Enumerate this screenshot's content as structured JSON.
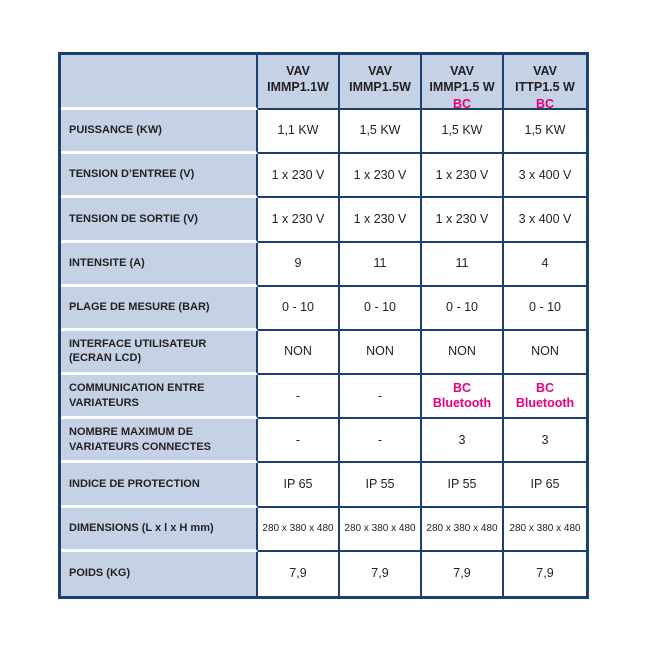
{
  "table": {
    "colors": {
      "navy": "#1b4072",
      "light_blue": "#c5d2e6",
      "magenta": "#e5007d"
    },
    "corner_label": "",
    "products": [
      {
        "line1": "VAV",
        "line2": "IMMP1.1W",
        "bc": ""
      },
      {
        "line1": "VAV",
        "line2": "IMMP1.5W",
        "bc": ""
      },
      {
        "line1": "VAV",
        "line2": "IMMP1.5 W",
        "bc": "BC"
      },
      {
        "line1": "VAV",
        "line2": "ITTP1.5 W",
        "bc": "BC"
      }
    ],
    "rows": [
      {
        "label": "PUISSANCE (KW)",
        "values": [
          "1,1 KW",
          "1,5 KW",
          "1,5 KW",
          "1,5 KW"
        ]
      },
      {
        "label": "TENSION D’ENTREE (V)",
        "values": [
          "1 x 230 V",
          "1 x 230 V",
          "1 x 230 V",
          "3 x 400 V"
        ]
      },
      {
        "label": "TENSION DE SORTIE (V)",
        "values": [
          "1 x 230 V",
          "1 x 230 V",
          "1 x 230 V",
          "3 x 400 V"
        ]
      },
      {
        "label": "INTENSITE (A)",
        "values": [
          "9",
          "11",
          "11",
          "4"
        ]
      },
      {
        "label": "PLAGE DE MESURE (BAR)",
        "values": [
          "0 - 10",
          "0 - 10",
          "0 - 10",
          "0 - 10"
        ]
      },
      {
        "label": "INTERFACE UTILISATEUR\n(ECRAN LCD)",
        "values": [
          "NON",
          "NON",
          "NON",
          "NON"
        ]
      },
      {
        "label": "COMMUNICATION ENTRE\nVARIATEURS",
        "values": [
          "-",
          "-",
          "BC\nBluetooth",
          "BC\nBluetooth"
        ],
        "accent": [
          false,
          false,
          true,
          true
        ]
      },
      {
        "label": "NOMBRE MAXIMUM DE\nVARIATEURS CONNECTES",
        "values": [
          "-",
          "-",
          "3",
          "3"
        ]
      },
      {
        "label": "INDICE DE PROTECTION",
        "values": [
          "IP 65",
          "IP 55",
          "IP 55",
          "IP 65"
        ]
      },
      {
        "label": "DIMENSIONS (L x l x H mm)",
        "values": [
          "280 x 380 x 480",
          "280 x 380 x 480",
          "280 x 380 x 480",
          "280 x 380 x 480"
        ],
        "small": true
      },
      {
        "label": "POIDS (KG)",
        "values": [
          "7,9",
          "7,9",
          "7,9",
          "7,9"
        ]
      }
    ]
  }
}
